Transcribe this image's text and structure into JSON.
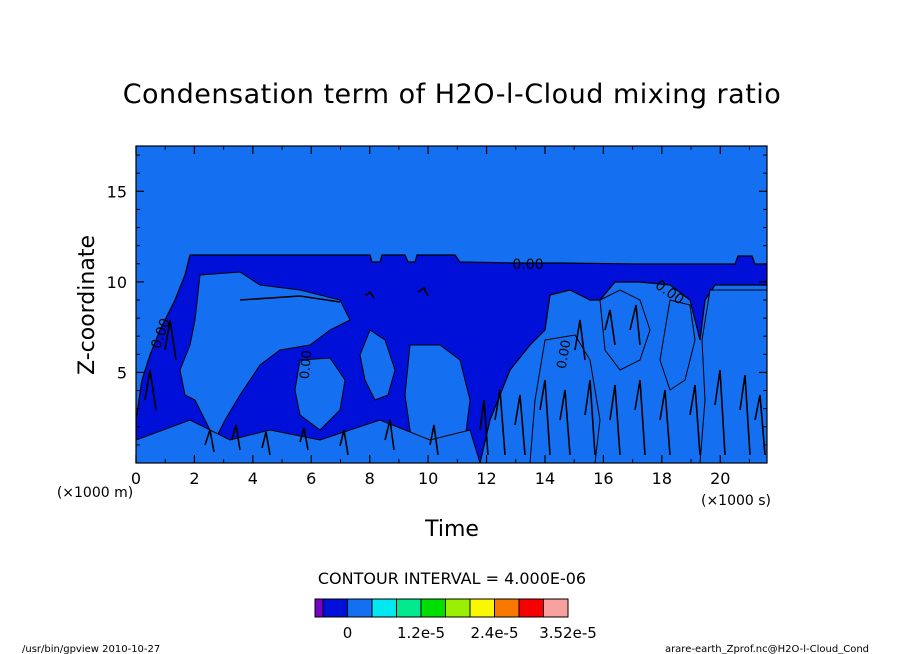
{
  "chart_data": {
    "type": "heatmap",
    "title": "Condensation term of H2O-l-Cloud mixing ratio",
    "xlabel": "Time",
    "ylabel": "Z-coordinate",
    "x_units": "(×1000 s)",
    "y_units": "(×1000 m)",
    "xlim": [
      0,
      21.6
    ],
    "ylim": [
      0,
      17.5
    ],
    "x_ticks": [
      "0",
      "2",
      "4",
      "6",
      "8",
      "10",
      "12",
      "14",
      "16",
      "18",
      "20"
    ],
    "x_tick_values": [
      0,
      2,
      4,
      6,
      8,
      10,
      12,
      14,
      16,
      18,
      20
    ],
    "y_ticks": [
      "5",
      "10",
      "15"
    ],
    "y_tick_values": [
      5,
      10,
      15
    ],
    "contour_label": "0.00",
    "contour_interval_text": "CONTOUR INTERVAL = 4.000E-06",
    "colorbar": {
      "colors": [
        "#7a00c8",
        "#0010d8",
        "#1470f0",
        "#00e8f0",
        "#00e890",
        "#00e000",
        "#98f000",
        "#f8f800",
        "#f87800",
        "#f80000",
        "#f8a0a0"
      ],
      "labels": [
        "0",
        "1.2e-5",
        "2.4e-5",
        "3.52e-5"
      ],
      "label_positions_index": [
        2,
        5,
        8,
        11
      ]
    },
    "regions": {
      "cloud_top_km": 11.8,
      "cloud_base_onset_ks": 1.9,
      "background_color": "#1470f0",
      "cloud_color": "#0010d8"
    }
  },
  "footer": {
    "left": "/usr/bin/gpview   2010-10-27",
    "right": "arare-earth_Zprof.nc@H2O-l-Cloud_Cond"
  }
}
